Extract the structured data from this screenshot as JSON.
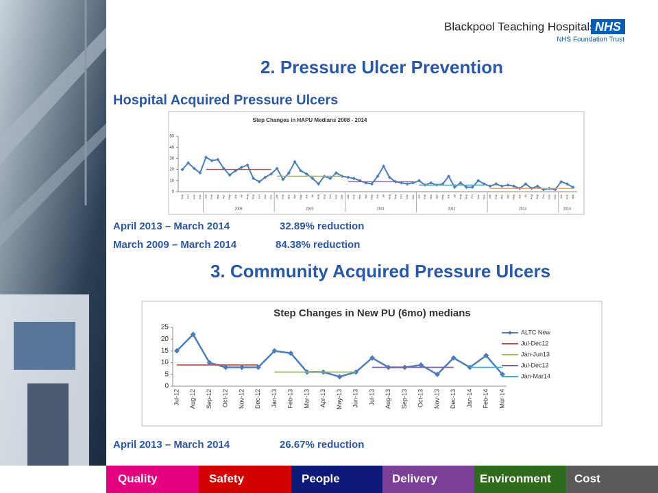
{
  "header": {
    "organization": "Blackpool Teaching Hospitals",
    "badge": "NHS",
    "trust": "NHS Foundation Trust"
  },
  "title": "2. Pressure Ulcer Prevention",
  "section1": {
    "heading": "Hospital Acquired Pressure Ulcers",
    "notes": [
      {
        "period": "April 2013 – March 2014",
        "reduction": "32.89% reduction"
      },
      {
        "period": "March 2009 – March 2014",
        "reduction": "84.38% reduction"
      }
    ]
  },
  "section2": {
    "heading": "3. Community Acquired Pressure Ulcers",
    "notes": [
      {
        "period": "April 2013 – March 2014",
        "reduction": "26.67% reduction"
      }
    ]
  },
  "chart_data": [
    {
      "type": "line",
      "title": "Step Changes in HAPU Medians 2008 - 2014",
      "categories": [
        "Sep",
        "Oct",
        "Nov",
        "Dec",
        "Jan",
        "Feb",
        "Mar",
        "Apr",
        "May",
        "Jun",
        "Jul",
        "Aug",
        "Sep",
        "Oct",
        "Nov",
        "Dec",
        "Jan",
        "Feb",
        "Mar",
        "Apr",
        "May",
        "Jun",
        "Jul",
        "Aug",
        "Sep",
        "Oct",
        "Nov",
        "Dec",
        "Jan",
        "Feb",
        "Mar",
        "Apr",
        "May",
        "Jun",
        "Jul",
        "Aug",
        "Sep",
        "Oct",
        "Nov",
        "Dec",
        "Jan",
        "Feb",
        "Mar",
        "Apr",
        "May",
        "Jun",
        "Jul",
        "Aug",
        "Sep",
        "Oct",
        "Nov",
        "Dec",
        "Jan",
        "Feb",
        "Mar",
        "Apr",
        "May",
        "Jun",
        "Jul",
        "Aug",
        "Sep",
        "Oct",
        "Nov",
        "Dec",
        "Jan",
        "Feb",
        "Mar"
      ],
      "year_labels": [
        "2009",
        "2010",
        "2011",
        "2012",
        "2013",
        "2014"
      ],
      "ylim": [
        0,
        50
      ],
      "yticks": [
        0,
        10,
        20,
        30,
        40,
        50
      ],
      "grid": false,
      "series": [
        {
          "color": "#4a7ebb",
          "marker": "diamond",
          "values": [
            20,
            26,
            21,
            17,
            31,
            28,
            29,
            21,
            15,
            19,
            22,
            24,
            12,
            9,
            13,
            16,
            21,
            11,
            17,
            27,
            19,
            16,
            12,
            7,
            14,
            12,
            17,
            14,
            13,
            12,
            10,
            8,
            7,
            14,
            23,
            13,
            9,
            8,
            7,
            8,
            10,
            6,
            8,
            6,
            7,
            14,
            4,
            8,
            4,
            4,
            10,
            7,
            5,
            7,
            5,
            6,
            5,
            3,
            7,
            3,
            5,
            2,
            3,
            2,
            9,
            7,
            4
          ]
        },
        {
          "color": "#c0504d",
          "values": [
            null,
            null,
            null,
            null,
            20,
            20,
            20,
            20,
            20,
            20,
            20,
            20,
            20,
            20,
            20,
            20,
            null,
            null,
            null,
            null,
            null,
            null,
            null,
            null,
            null,
            null,
            null,
            null,
            null,
            null,
            null,
            null,
            null,
            null,
            null,
            null,
            null,
            null,
            null,
            null,
            null,
            null,
            null,
            null,
            null,
            null,
            null,
            null,
            null,
            null,
            null,
            null,
            null,
            null,
            null,
            null,
            null,
            null,
            null,
            null,
            null,
            null,
            null,
            null,
            null,
            null,
            null
          ]
        },
        {
          "color": "#9bbb59",
          "values": [
            null,
            null,
            null,
            null,
            null,
            null,
            null,
            null,
            null,
            null,
            null,
            null,
            null,
            null,
            null,
            null,
            14,
            14,
            14,
            14,
            14,
            14,
            14,
            14,
            14,
            14,
            14,
            14,
            null,
            null,
            null,
            null,
            null,
            null,
            null,
            null,
            null,
            null,
            null,
            null,
            null,
            null,
            null,
            null,
            null,
            null,
            null,
            null,
            null,
            null,
            null,
            null,
            null,
            null,
            null,
            null,
            null,
            null,
            null,
            null,
            null,
            null,
            null,
            null,
            null,
            null,
            null
          ]
        },
        {
          "color": "#8064a2",
          "values": [
            null,
            null,
            null,
            null,
            null,
            null,
            null,
            null,
            null,
            null,
            null,
            null,
            null,
            null,
            null,
            null,
            null,
            null,
            null,
            null,
            null,
            null,
            null,
            null,
            null,
            null,
            null,
            null,
            9,
            9,
            9,
            9,
            9,
            9,
            9,
            9,
            9,
            9,
            9,
            9,
            null,
            null,
            null,
            null,
            null,
            null,
            null,
            null,
            null,
            null,
            null,
            null,
            null,
            null,
            null,
            null,
            null,
            null,
            null,
            null,
            null,
            null,
            null,
            null,
            null,
            null,
            null
          ]
        },
        {
          "color": "#4bacc6",
          "values": [
            null,
            null,
            null,
            null,
            null,
            null,
            null,
            null,
            null,
            null,
            null,
            null,
            null,
            null,
            null,
            null,
            null,
            null,
            null,
            null,
            null,
            null,
            null,
            null,
            null,
            null,
            null,
            null,
            null,
            null,
            null,
            null,
            null,
            null,
            null,
            null,
            null,
            null,
            null,
            null,
            6,
            6,
            6,
            6,
            6,
            6,
            6,
            6,
            6,
            6,
            6,
            6,
            null,
            null,
            null,
            null,
            null,
            null,
            null,
            null,
            null,
            null,
            null,
            null,
            null,
            null,
            null
          ]
        },
        {
          "color": "#f79646",
          "values": [
            null,
            null,
            null,
            null,
            null,
            null,
            null,
            null,
            null,
            null,
            null,
            null,
            null,
            null,
            null,
            null,
            null,
            null,
            null,
            null,
            null,
            null,
            null,
            null,
            null,
            null,
            null,
            null,
            null,
            null,
            null,
            null,
            null,
            null,
            null,
            null,
            null,
            null,
            null,
            null,
            null,
            null,
            null,
            null,
            null,
            null,
            null,
            null,
            null,
            null,
            null,
            null,
            3,
            3,
            3,
            3,
            3,
            3,
            3,
            3,
            3,
            3,
            3,
            3,
            3,
            3,
            3
          ]
        }
      ]
    },
    {
      "type": "line",
      "title": "Step Changes in New PU (6mo) medians",
      "categories": [
        "Jul-12",
        "Aug-12",
        "Sep-12",
        "Oct-12",
        "Nov-12",
        "Dec-12",
        "Jan-13",
        "Feb-13",
        "Mar-13",
        "Apr-13",
        "May-13",
        "Jun-13",
        "Jul-13",
        "Aug-13",
        "Sep-13",
        "Oct-13",
        "Nov-13",
        "Dec-13",
        "Jan-14",
        "Feb-14",
        "Mar-14"
      ],
      "ylim": [
        0,
        25
      ],
      "yticks": [
        0,
        5,
        10,
        15,
        20,
        25
      ],
      "grid": false,
      "legend": "right",
      "series": [
        {
          "name": "ALTC New",
          "color": "#4a7ebb",
          "marker": "diamond",
          "values": [
            15,
            22,
            10,
            8,
            8,
            8,
            15,
            14,
            6,
            6,
            4,
            6,
            12,
            8,
            8,
            9,
            5,
            12,
            8,
            13,
            5
          ]
        },
        {
          "name": "Jul-Dec12",
          "color": "#c0504d",
          "values": [
            9,
            9,
            9,
            9,
            9,
            9,
            null,
            null,
            null,
            null,
            null,
            null,
            null,
            null,
            null,
            null,
            null,
            null,
            null,
            null,
            null
          ]
        },
        {
          "name": "Jan-Jun13",
          "color": "#9bbb59",
          "values": [
            null,
            null,
            null,
            null,
            null,
            null,
            6,
            6,
            6,
            6,
            6,
            6,
            null,
            null,
            null,
            null,
            null,
            null,
            null,
            null,
            null
          ]
        },
        {
          "name": "Jul-Dec13",
          "color": "#8064a2",
          "values": [
            null,
            null,
            null,
            null,
            null,
            null,
            null,
            null,
            null,
            null,
            null,
            null,
            8,
            8,
            8,
            8,
            8,
            8,
            null,
            null,
            null
          ]
        },
        {
          "name": "Jan-Mar14",
          "color": "#4bacc6",
          "values": [
            null,
            null,
            null,
            null,
            null,
            null,
            null,
            null,
            null,
            null,
            null,
            null,
            null,
            null,
            null,
            null,
            null,
            null,
            8,
            8,
            8
          ]
        }
      ]
    }
  ],
  "footer": [
    "Quality",
    "Safety",
    "People",
    "Delivery",
    "Environment",
    "Cost"
  ]
}
